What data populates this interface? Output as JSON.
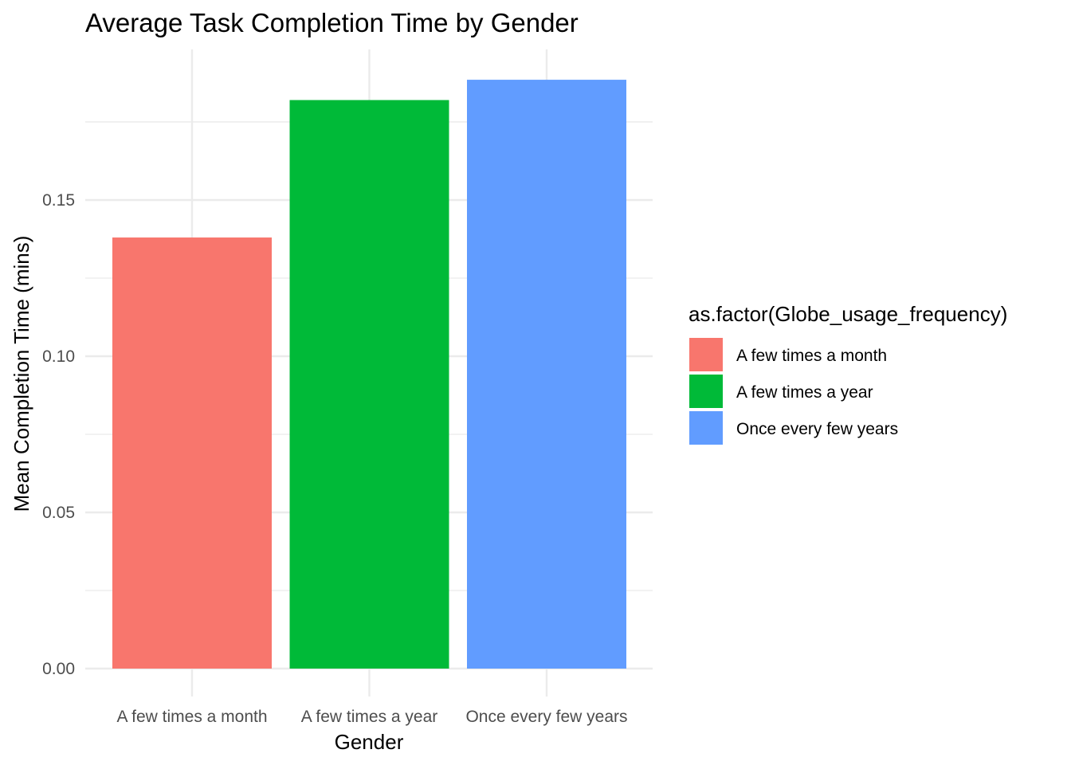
{
  "chart_data": {
    "type": "bar",
    "title": "Average Task Completion Time by Gender",
    "xlabel": "Gender",
    "ylabel": "Mean Completion Time (mins)",
    "categories": [
      "A few times a month",
      "A few times a year",
      "Once every few years"
    ],
    "values": [
      0.138,
      0.182,
      0.1885
    ],
    "colors": [
      "#F8766D",
      "#00BA38",
      "#619CFF"
    ],
    "ylim": [
      0,
      0.195
    ],
    "yticks": [
      0.0,
      0.05,
      0.1,
      0.15
    ],
    "ytick_labels": [
      "0.00",
      "0.05",
      "0.10",
      "0.15"
    ],
    "grid": true,
    "legend": {
      "title": "as.factor(Globe_usage_frequency)",
      "position": "right",
      "entries": [
        "A few times a month",
        "A few times a year",
        "Once every few years"
      ]
    }
  }
}
